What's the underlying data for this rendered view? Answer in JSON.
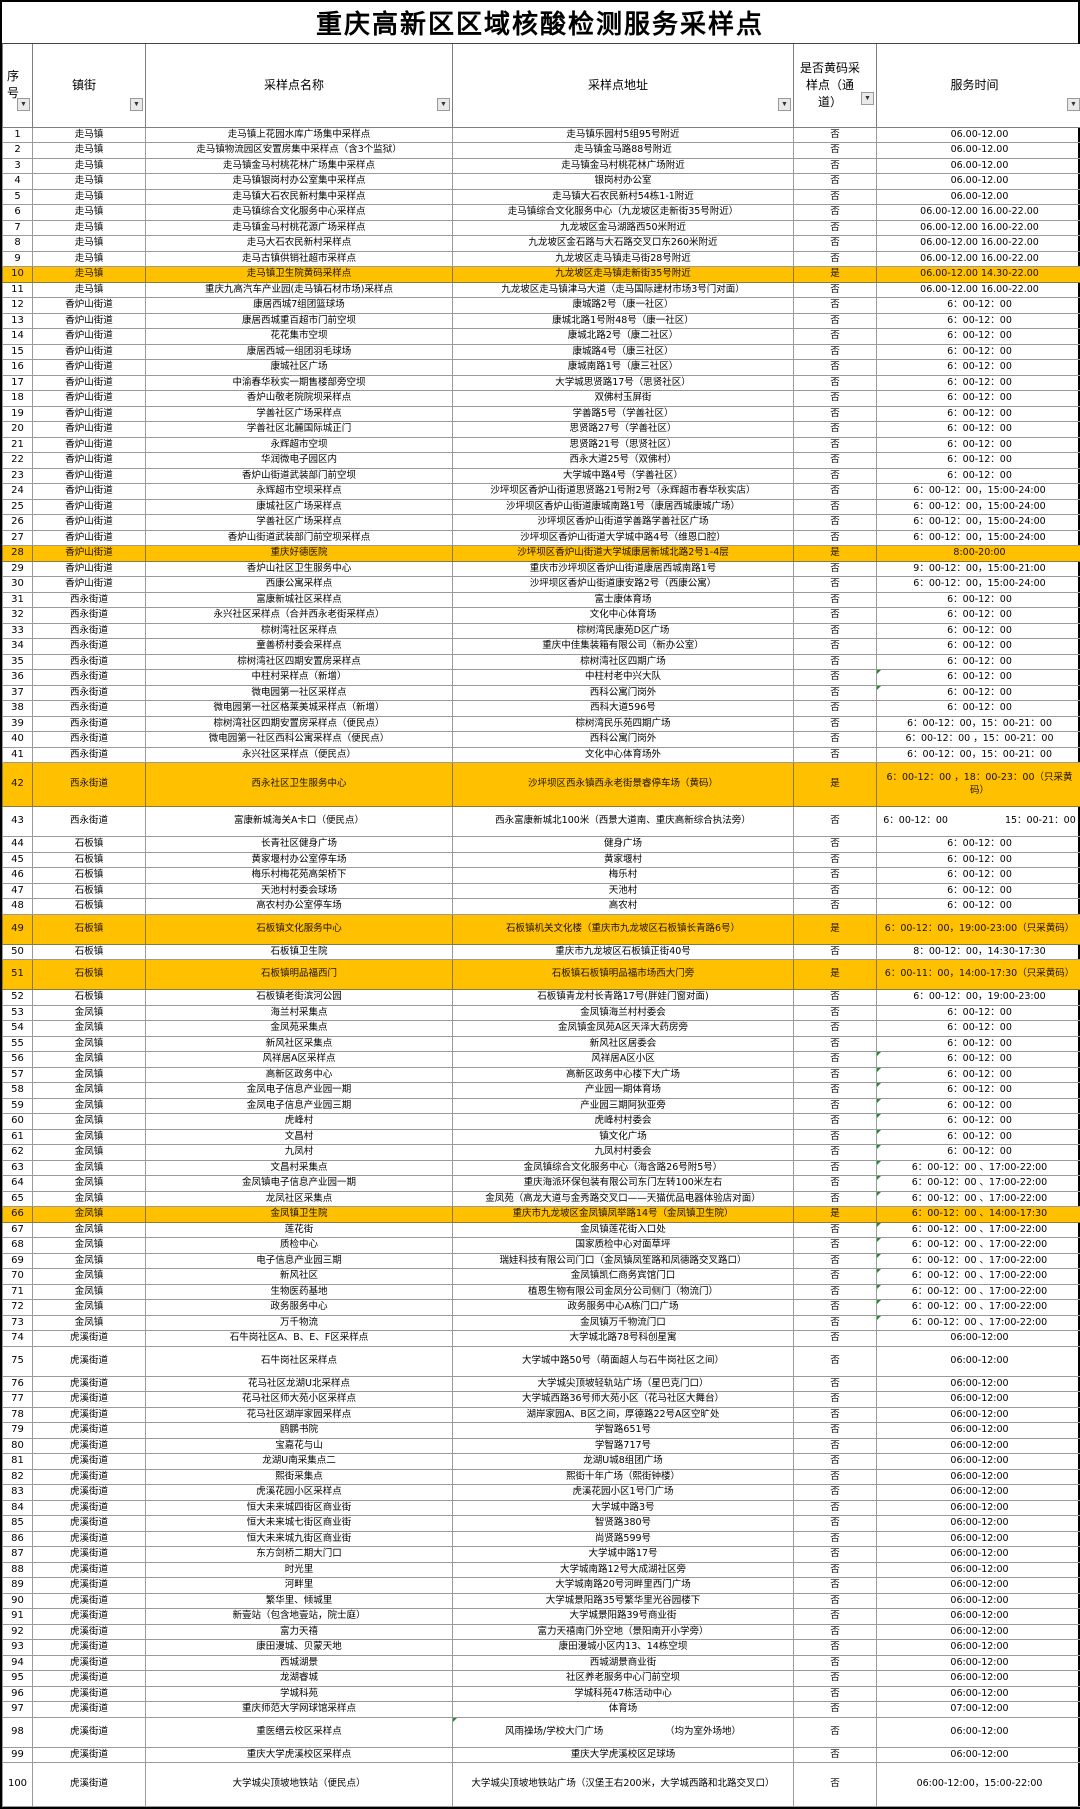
{
  "title": "重庆高新区区域核酸检测服务采样点",
  "colors": {
    "highlight": "#FFC000",
    "grid": "#9a9a9a",
    "flag_green": "#2e8b2e"
  },
  "table": {
    "filter_icon": "▼",
    "columns": [
      {
        "label": "序号"
      },
      {
        "label": "镇街"
      },
      {
        "label": "采样点名称"
      },
      {
        "label": "采样点地址"
      },
      {
        "label": "是否黄码采样点（通道）"
      },
      {
        "label": "服务时间"
      }
    ],
    "rows": [
      [
        1,
        "走马镇",
        "走马镇上花园水库广场集中采样点",
        "走马镇乐园村5组95号附近",
        "否",
        "06.00-12.00",
        ""
      ],
      [
        2,
        "走马镇",
        "走马镇物流园区安置房集中采样点（含3个监狱）",
        "走马镇金马路88号附近",
        "否",
        "06.00-12.00",
        ""
      ],
      [
        3,
        "走马镇",
        "走马镇金马村桃花林广场集中采样点",
        "走马镇金马村桃花林广场附近",
        "否",
        "06.00-12.00",
        ""
      ],
      [
        4,
        "走马镇",
        "走马镇银岗村办公室集中采样点",
        "银岗村办公室",
        "否",
        "06.00-12.00",
        ""
      ],
      [
        5,
        "走马镇",
        "走马镇大石农民新村集中采样点",
        "走马镇大石农民新村54栋1-1附近",
        "否",
        "06.00-12.00",
        ""
      ],
      [
        6,
        "走马镇",
        "走马镇综合文化服务中心采样点",
        "走马镇综合文化服务中心（九龙坡区走新街35号附近）",
        "否",
        "06.00-12.00 16.00-22.00",
        ""
      ],
      [
        7,
        "走马镇",
        "走马镇金马村桃花源广场采样点",
        "九龙坡区金马湖路西50米附近",
        "否",
        "06.00-12.00 16.00-22.00",
        ""
      ],
      [
        8,
        "走马镇",
        "走马大石农民新村采样点",
        "九龙坡区金石路与大石路交叉口东260米附近",
        "否",
        "06.00-12.00 16.00-22.00",
        ""
      ],
      [
        9,
        "走马镇",
        "走马古镇供销社超市采样点",
        "九龙坡区走马镇走马街28号附近",
        "否",
        "06.00-12.00 16.00-22.00",
        ""
      ],
      [
        10,
        "走马镇",
        "走马镇卫生院黄码采样点",
        "九龙坡区走马镇走新街35号附近",
        "是",
        "06.00-12.00 14.30-22.00",
        "y"
      ],
      [
        11,
        "走马镇",
        "重庆九高汽车产业园(走马镇石材市场)采样点",
        "九龙坡区走马镇津马大道（走马国际建材市场3号门对面）",
        "否",
        "06.00-12.00 16.00-22.00",
        ""
      ],
      [
        12,
        "香炉山街道",
        "康居西城7组团篮球场",
        "康城路2号（康一社区）",
        "否",
        "6：00-12：00",
        ""
      ],
      [
        13,
        "香炉山街道",
        "康居西城重百超市门前空坝",
        "康城北路1号附48号（康一社区）",
        "否",
        "6：00-12：00",
        ""
      ],
      [
        14,
        "香炉山街道",
        "花花集市空坝",
        "康城北路2号（康二社区）",
        "否",
        "6：00-12：00",
        ""
      ],
      [
        15,
        "香炉山街道",
        "康居西城一组团羽毛球场",
        "康城路4号（康三社区）",
        "否",
        "6：00-12：00",
        ""
      ],
      [
        16,
        "香炉山街道",
        "康城社区广场",
        "康城南路1号（康三社区）",
        "否",
        "6：00-12：00",
        ""
      ],
      [
        17,
        "香炉山街道",
        "中渝春华秋实一期售楼部旁空坝",
        "大学城思贤路17号（思贤社区）",
        "否",
        "6：00-12：00",
        ""
      ],
      [
        18,
        "香炉山街道",
        "香炉山敬老院院坝采样点",
        "双佛村玉屏街",
        "否",
        "6：00-12：00",
        ""
      ],
      [
        19,
        "香炉山街道",
        "学善社区广场采样点",
        "学善路5号（学善社区）",
        "否",
        "6：00-12：00",
        ""
      ],
      [
        20,
        "香炉山街道",
        "学善社区北麓国际城正门",
        "思贤路27号（学善社区）",
        "否",
        "6：00-12：00",
        ""
      ],
      [
        21,
        "香炉山街道",
        "永辉超市空坝",
        "思贤路21号（思贤社区）",
        "否",
        "6：00-12：00",
        ""
      ],
      [
        22,
        "香炉山街道",
        "华润微电子园区内",
        "西永大道25号（双佛村）",
        "否",
        "6：00-12：00",
        ""
      ],
      [
        23,
        "香炉山街道",
        "香炉山街道武装部门前空坝",
        "大学城中路4号（学善社区）",
        "否",
        "6：00-12：00",
        ""
      ],
      [
        24,
        "香炉山街道",
        "永辉超市空坝采样点",
        "沙坪坝区香炉山街道思贤路21号附2号（永辉超市春华秋实店）",
        "否",
        "6：00-12：00，15:00-24:00",
        ""
      ],
      [
        25,
        "香炉山街道",
        "康城社区广场采样点",
        "沙坪坝区香炉山街道康城南路1号（康居西城康城广场）",
        "否",
        "6：00-12：00，15:00-24:00",
        ""
      ],
      [
        26,
        "香炉山街道",
        "学善社区广场采样点",
        "沙坪坝区香炉山街道学善路学善社区广场",
        "否",
        "6：00-12：00，15:00-24:00",
        ""
      ],
      [
        27,
        "香炉山街道",
        "香炉山街道武装部门前空坝采样点",
        "沙坪坝区香炉山街道大学城中路4号（维恩口腔）",
        "否",
        "6：00-12：00，15:00-24:00",
        ""
      ],
      [
        28,
        "香炉山街道",
        "重庆好德医院",
        "沙坪坝区香炉山街道大学城康居新城北路2号1-4层",
        "是",
        "8:00-20:00",
        "y"
      ],
      [
        29,
        "香炉山街道",
        "香炉山社区卫生服务中心",
        "重庆市沙坪坝区香炉山街道康居西城南路1号",
        "否",
        "9：00-12：00，15:00-21:00",
        ""
      ],
      [
        30,
        "香炉山街道",
        "西康公寓采样点",
        "沙坪坝区香炉山街道康安路2号（西康公寓）",
        "否",
        "6：00-12：00，15:00-24:00",
        ""
      ],
      [
        31,
        "西永街道",
        "富康新城社区采样点",
        "富士康体育场",
        "否",
        "6：00-12：00",
        ""
      ],
      [
        32,
        "西永街道",
        "永兴社区采样点（合并西永老街采样点）",
        "文化中心体育场",
        "否",
        "6：00-12：00",
        ""
      ],
      [
        33,
        "西永街道",
        "棕树湾社区采样点",
        "棕树湾民康苑D区广场",
        "否",
        "6：00-12：00",
        ""
      ],
      [
        34,
        "西永街道",
        "童善桥村委会采样点",
        "重庆中佳集装箱有限公司（新办公室）",
        "否",
        "6：00-12：00",
        ""
      ],
      [
        35,
        "西永街道",
        "棕树湾社区四期安置房采样点",
        "棕树湾社区四期广场",
        "否",
        "6：00-12：00",
        ""
      ],
      [
        36,
        "西永街道",
        "中柱村采样点（新增）",
        "中柱村老中兴大队",
        "否",
        "6：00-12：00",
        "f"
      ],
      [
        37,
        "西永街道",
        "微电园第一社区采样点",
        "西科公寓门岗外",
        "否",
        "6：00-12：00",
        "f"
      ],
      [
        38,
        "西永街道",
        "微电园第一社区格莱美城采样点（新增）",
        "西科大道596号",
        "否",
        "6：00-12：00",
        ""
      ],
      [
        39,
        "西永街道",
        "棕树湾社区四期安置房采样点（便民点）",
        "棕树湾民乐苑四期广场",
        "否",
        "6：00-12：00，15：00-21：00",
        ""
      ],
      [
        40,
        "西永街道",
        "微电园第一社区西科公寓采样点（便民点）",
        "西科公寓门岗外",
        "否",
        "6：00-12：00 ，15：00-21：00",
        ""
      ],
      [
        41,
        "西永街道",
        "永兴社区采样点（便民点）",
        "文化中心体育场外",
        "否",
        "6：00-12：00，15：00-21：00",
        ""
      ],
      [
        42,
        "西永街道",
        "西永社区卫生服务中心",
        "沙坪坝区西永镇西永老街景睿停车场（黄码）",
        "是",
        "6：00-12：00 ，18：00-23：00（只采黄码）",
        "y3"
      ],
      [
        43,
        "西永街道",
        "富康新城海关A卡口（便民点）",
        "西永富康新城北100米（西景大道南、重庆高新综合执法旁）",
        "否",
        "6：00-12：00　　　　　　15：00-21：00",
        "h2"
      ],
      [
        44,
        "石板镇",
        "长青社区健身广场",
        "健身广场",
        "否",
        "6：00-12：00",
        ""
      ],
      [
        45,
        "石板镇",
        "黄家堰村办公室停车场",
        "黄家堰村",
        "否",
        "6：00-12：00",
        ""
      ],
      [
        46,
        "石板镇",
        "梅乐村梅花苑高架桥下",
        "梅乐村",
        "否",
        "6：00-12：00",
        ""
      ],
      [
        47,
        "石板镇",
        "天池村村委会球场",
        "天池村",
        "否",
        "6：00-12：00",
        ""
      ],
      [
        48,
        "石板镇",
        "高农村办公室停车场",
        "高农村",
        "否",
        "6：00-12：00",
        ""
      ],
      [
        49,
        "石板镇",
        "石板镇文化服务中心",
        "石板镇机关文化楼（重庆市九龙坡区石板镇长青路6号）",
        "是",
        "6：00-12：00，19:00-23:00（只采黄码）",
        "y2"
      ],
      [
        50,
        "石板镇",
        "石板镇卫生院",
        "重庆市九龙坡区石板镇正街40号",
        "否",
        "8：00-12：00，14:30-17:30",
        ""
      ],
      [
        51,
        "石板镇",
        "石板镇明品福西门",
        "石板镇石板镇明品福市场西大门旁",
        "是",
        "6：00-11：00，14:00-17:30（只采黄码）",
        "y2"
      ],
      [
        52,
        "石板镇",
        "石板镇老街滨河公园",
        "石板镇青龙村长青路17号(胖娃门窗对面)",
        "否",
        "6：00-12：00，19:00-23:00",
        ""
      ],
      [
        53,
        "金凤镇",
        "海兰村采集点",
        "金凤镇海兰村村委会",
        "否",
        "6：00-12：00",
        ""
      ],
      [
        54,
        "金凤镇",
        "金凤苑采集点",
        "金凤镇金凤苑A区天泽大药房旁",
        "否",
        "6：00-12：00",
        ""
      ],
      [
        55,
        "金凤镇",
        "新风社区采集点",
        "新风社区居委会",
        "否",
        "6：00-12：00",
        ""
      ],
      [
        56,
        "金凤镇",
        "风祥居A区采样点",
        "风祥居A区小区",
        "否",
        "6：00-12：00",
        "f"
      ],
      [
        57,
        "金凤镇",
        "高新区政务中心",
        "高新区政务中心楼下大广场",
        "否",
        "6：00-12：00",
        "f"
      ],
      [
        58,
        "金凤镇",
        "金凤电子信息产业园一期",
        "产业园一期体育场",
        "否",
        "6：00-12：00",
        "f"
      ],
      [
        59,
        "金凤镇",
        "金凤电子信息产业园三期",
        "产业园三期阿狄亚旁",
        "否",
        "6：00-12：00",
        "f"
      ],
      [
        60,
        "金凤镇",
        "虎峰村",
        "虎峰村村委会",
        "否",
        "6：00-12：00",
        "f"
      ],
      [
        61,
        "金凤镇",
        "文昌村",
        "镇文化广场",
        "否",
        "6：00-12：00",
        "f"
      ],
      [
        62,
        "金凤镇",
        "九凤村",
        "九凤村村委会",
        "否",
        "6：00-12：00",
        "f"
      ],
      [
        63,
        "金凤镇",
        "文昌村采集点",
        "金凤镇综合文化服务中心（海含路26号附5号）",
        "否",
        "6：00-12：00 、17:00-22:00",
        "f"
      ],
      [
        64,
        "金凤镇",
        "金凤镇电子信息产业园一期",
        "重庆海派环保包装有限公司东门左转100米左右",
        "否",
        "6：00-12：00 、17:00-22:00",
        "f"
      ],
      [
        65,
        "金凤镇",
        "龙凤社区采集点",
        "金凤苑（高龙大道与金秀路交叉口——天猫优品电器体验店对面）",
        "否",
        "6：00-12：00 、17:00-22:00",
        "f"
      ],
      [
        66,
        "金凤镇",
        "金凤镇卫生院",
        "重庆市九龙坡区金凤镇凤举路14号（金凤镇卫生院）",
        "是",
        "6：00-12：00 、14:00-17:30",
        "y"
      ],
      [
        67,
        "金凤镇",
        "莲花街",
        "金凤镇莲花街入口处",
        "否",
        "6：00-12：00 、17:00-22:00",
        "f"
      ],
      [
        68,
        "金凤镇",
        "质检中心",
        "国家质检中心对面草坪",
        "否",
        "6：00-12：00 、17:00-22:00",
        "f"
      ],
      [
        69,
        "金凤镇",
        "电子信息产业园三期",
        "瑞娃科技有限公司门口（金凤镇凤笙路和凤德路交叉路口）",
        "否",
        "6：00-12：00 、17:00-22:00",
        "f"
      ],
      [
        70,
        "金凤镇",
        "新风社区",
        "金凤镇凯仁商务宾馆门口",
        "否",
        "6：00-12：00 、17:00-22:00",
        "f"
      ],
      [
        71,
        "金凤镇",
        "生物医药基地",
        "植恩生物有限公司金凤分公司侧门（物流门）",
        "否",
        "6：00-12：00 、17:00-22:00",
        "f"
      ],
      [
        72,
        "金凤镇",
        "政务服务中心",
        "政务服务中心A栋门口广场",
        "否",
        "6：00-12：00 、17:00-22:00",
        "f"
      ],
      [
        73,
        "金凤镇",
        "万千物流",
        "金凤镇万千物流门口",
        "否",
        "6：00-12：00 、17:00-22:00",
        "f"
      ],
      [
        74,
        "虎溪街道",
        "石牛岗社区A、B、E、F区采样点",
        "大学城北路78号科创星寓",
        "否",
        "06:00-12:00",
        ""
      ],
      [
        75,
        "虎溪街道",
        "石牛岗社区采样点",
        "大学城中路50号（萌面超人与石牛岗社区之间）",
        "否",
        "06:00-12:00",
        "h2"
      ],
      [
        76,
        "虎溪街道",
        "花马社区龙湖U北采样点",
        "大学城尖顶坡轻轨站广场（星巴克门口）",
        "否",
        "06:00-12:00",
        ""
      ],
      [
        77,
        "虎溪街道",
        "花马社区师大苑小区采样点",
        "大学城西路36号师大苑小区（花马社区大舞台）",
        "否",
        "06:00-12:00",
        ""
      ],
      [
        78,
        "虎溪街道",
        "花马社区湖岸家园采样点",
        "湖岸家园A、B区之间，厚德路22号A区空旷处",
        "否",
        "06:00-12:00",
        ""
      ],
      [
        79,
        "虎溪街道",
        "鸥鹏书院",
        "学智路651号",
        "否",
        "06:00-12:00",
        ""
      ],
      [
        80,
        "虎溪街道",
        "宝嘉花与山",
        "学智路717号",
        "否",
        "06:00-12:00",
        ""
      ],
      [
        81,
        "虎溪街道",
        "龙湖U南采集点二",
        "龙湖U城8组团广场",
        "否",
        "06:00-12:00",
        ""
      ],
      [
        82,
        "虎溪街道",
        "熙街采集点",
        "熙街十年广场（熙街钟楼）",
        "否",
        "06:00-12:00",
        ""
      ],
      [
        83,
        "虎溪街道",
        "虎溪花园小区采样点",
        "虎溪花园小区1号门广场",
        "否",
        "06:00-12:00",
        ""
      ],
      [
        84,
        "虎溪街道",
        "恒大未来城四街区商业街",
        "大学城中路3号",
        "否",
        "06:00-12:00",
        ""
      ],
      [
        85,
        "虎溪街道",
        "恒大未来城七街区商业街",
        "智贤路380号",
        "否",
        "06:00-12:00",
        ""
      ],
      [
        86,
        "虎溪街道",
        "恒大未来城九街区商业街",
        "尚贤路599号",
        "否",
        "06:00-12:00",
        ""
      ],
      [
        87,
        "虎溪街道",
        "东方剑桥二期大门口",
        "大学城中路17号",
        "否",
        "06:00-12:00",
        ""
      ],
      [
        88,
        "虎溪街道",
        "时光里",
        "大学城南路12号大成湖社区旁",
        "否",
        "06:00-12:00",
        ""
      ],
      [
        89,
        "虎溪街道",
        "河畔里",
        "大学城南路20号河畔里西门广场",
        "否",
        "06:00-12:00",
        ""
      ],
      [
        90,
        "虎溪街道",
        "繁华里、倾城里",
        "大学城景阳路35号繁华里光谷园楼下",
        "否",
        "06:00-12:00",
        ""
      ],
      [
        91,
        "虎溪街道",
        "新壹站（包含地壹站，院士庭）",
        "大学城景阳路39号商业街",
        "否",
        "06:00-12:00",
        ""
      ],
      [
        92,
        "虎溪街道",
        "富力天禧",
        "富力天禧南门外空地（景阳南开小学旁）",
        "否",
        "06:00-12:00",
        ""
      ],
      [
        93,
        "虎溪街道",
        "康田漫城、贝蒙天地",
        "康田漫城小区内13、14栋空坝",
        "否",
        "06:00-12:00",
        ""
      ],
      [
        94,
        "虎溪街道",
        "西城湖景",
        "西城湖景商业街",
        "否",
        "06:00-12:00",
        ""
      ],
      [
        95,
        "虎溪街道",
        "龙湖睿城",
        "社区养老服务中心门前空坝",
        "否",
        "06:00-12:00",
        ""
      ],
      [
        96,
        "虎溪街道",
        "学城科苑",
        "学城科苑47栋活动中心",
        "否",
        "06:00-12:00",
        ""
      ],
      [
        97,
        "虎溪街道",
        "重庆师范大学网球馆采样点",
        "体育场",
        "否",
        "07:00-12:00",
        ""
      ],
      [
        98,
        "虎溪街道",
        "重医缙云校区采样点",
        "风雨操场/学校大门广场　　　　　　　（均为室外场地）",
        "否",
        "06:00-12:00",
        "fa2"
      ],
      [
        99,
        "虎溪街道",
        "重庆大学虎溪校区采样点",
        "重庆大学虎溪校区足球场",
        "否",
        "06:00-12:00",
        ""
      ],
      [
        100,
        "虎溪街道",
        "大学城尖顶坡地铁站（便民点）",
        "大学城尖顶坡地铁站广场（汉堡王右200米，大学城西路和北路交叉口）",
        "否",
        "06:00-12:00，15:00-22:00",
        "h3"
      ]
    ]
  }
}
